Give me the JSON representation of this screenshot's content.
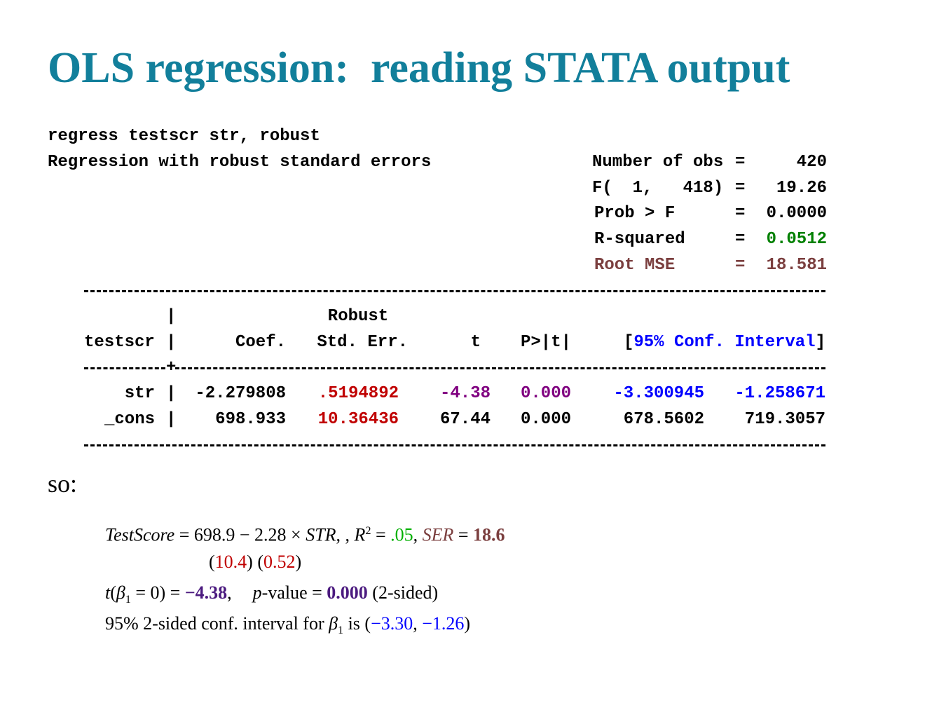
{
  "title": "OLS regression:  reading STATA output",
  "command": "regress testscr str, robust",
  "description": "Regression with robust standard errors",
  "stats_sep": "=",
  "stats": [
    {
      "label": "Number of obs",
      "value": "420"
    },
    {
      "label": "F(  1,   418)",
      "value": "19.26"
    },
    {
      "label": "Prob > F",
      "value": "0.0000"
    },
    {
      "label": "R-squared",
      "value": "0.0512"
    },
    {
      "label": "Root MSE",
      "value": "18.581"
    }
  ],
  "table": {
    "separator": "|",
    "robust_label": "Robust",
    "headers": [
      "testscr",
      "Coef.",
      "Std. Err.",
      "t",
      "P>|t|",
      "95% Conf. Interval"
    ],
    "ci_open": "[",
    "ci_close": "]",
    "rows": [
      [
        "str",
        "-2.279808",
        ".5194892",
        "-4.38",
        "0.000",
        "-3.300945",
        "-1.258671"
      ],
      [
        "_cons",
        "698.933",
        "10.36436",
        "67.44",
        "0.000",
        "678.5602",
        "719.3057"
      ]
    ]
  },
  "so": "so:",
  "equations": [
    [
      "TestScore",
      " = 698.9 − 2.28 × ",
      "STR",
      ", , ",
      "R",
      "2",
      " = ",
      ".05",
      ", ",
      "SER",
      " = ",
      "18.6"
    ],
    [
      "(",
      "10.4",
      ") (",
      "0.52",
      ")"
    ],
    [
      "t",
      "(",
      "β",
      "1",
      " = 0) = ",
      "−4.38",
      ",",
      "p",
      "-value = ",
      "0.000",
      " (2-sided)"
    ],
    [
      "95% 2-sided conf. interval for ",
      "β",
      "1",
      " is (",
      "−3.30",
      ", ",
      "−1.26",
      ")"
    ]
  ]
}
